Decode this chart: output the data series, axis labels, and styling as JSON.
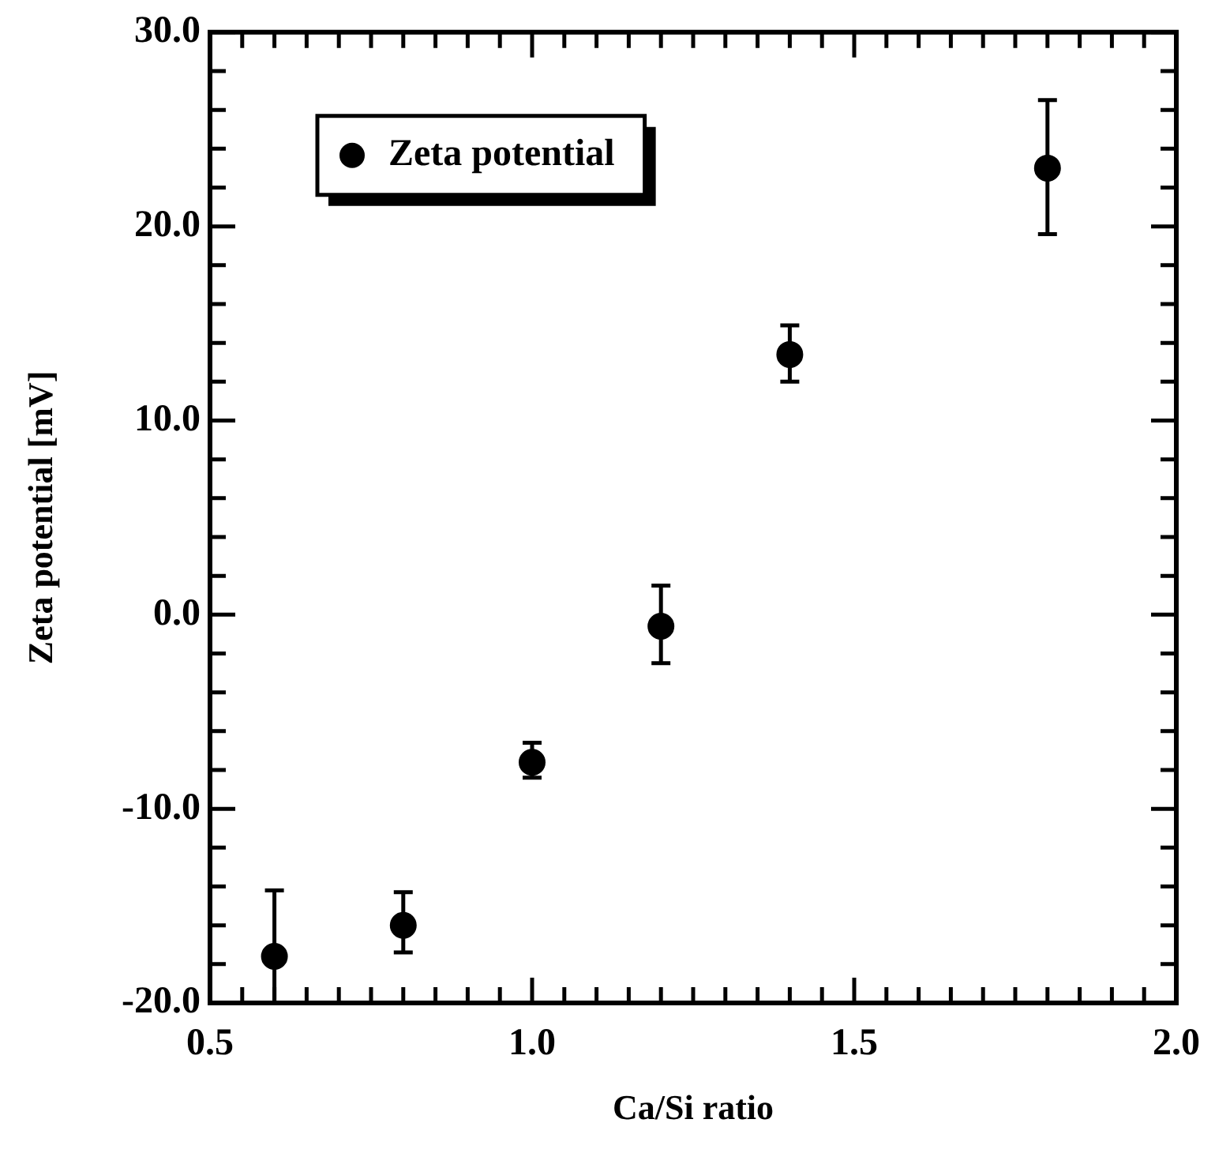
{
  "chart_data": {
    "type": "scatter",
    "xlabel": "Ca/Si ratio",
    "ylabel": "Zeta potential [mV]",
    "series": [
      {
        "name": "Zeta potential",
        "color": "#000000",
        "x": [
          0.6,
          0.8,
          1.0,
          1.2,
          1.4,
          1.8
        ],
        "values": [
          -17.6,
          -16.0,
          -7.6,
          -0.6,
          13.4,
          23.0
        ],
        "errors": [
          [
            -20,
            -14.2
          ],
          [
            -17.4,
            -14.3
          ],
          [
            -8.4,
            -6.6
          ],
          [
            -2.5,
            1.5
          ],
          [
            12.0,
            14.9
          ],
          [
            19.6,
            26.5
          ]
        ]
      }
    ],
    "xlim": [
      0.5,
      2.0
    ],
    "xticks": [
      {
        "value": 0.5,
        "label": "0.5"
      },
      {
        "value": 0.55,
        "label": null
      },
      {
        "value": 0.6,
        "label": null
      },
      {
        "value": 0.65,
        "label": null
      },
      {
        "value": 0.7,
        "label": null
      },
      {
        "value": 0.75,
        "label": null
      },
      {
        "value": 0.8,
        "label": null
      },
      {
        "value": 0.85,
        "label": null
      },
      {
        "value": 0.9,
        "label": null
      },
      {
        "value": 0.95,
        "label": null
      },
      {
        "value": 1.0,
        "label": "1.0"
      },
      {
        "value": 1.05,
        "label": null
      },
      {
        "value": 1.1,
        "label": null
      },
      {
        "value": 1.15,
        "label": null
      },
      {
        "value": 1.2,
        "label": null
      },
      {
        "value": 1.25,
        "label": null
      },
      {
        "value": 1.3,
        "label": null
      },
      {
        "value": 1.35,
        "label": null
      },
      {
        "value": 1.4,
        "label": null
      },
      {
        "value": 1.45,
        "label": null
      },
      {
        "value": 1.5,
        "label": "1.5"
      },
      {
        "value": 1.55,
        "label": null
      },
      {
        "value": 1.6,
        "label": null
      },
      {
        "value": 1.65,
        "label": null
      },
      {
        "value": 1.7,
        "label": null
      },
      {
        "value": 1.75,
        "label": null
      },
      {
        "value": 1.8,
        "label": null
      },
      {
        "value": 1.85,
        "label": null
      },
      {
        "value": 1.9,
        "label": null
      },
      {
        "value": 1.95,
        "label": null
      },
      {
        "value": 2.0,
        "label": "2.0"
      }
    ],
    "ylim": [
      -20,
      30
    ],
    "yticks": [
      {
        "value": -20,
        "label": "-20.0"
      },
      {
        "value": -18,
        "label": null
      },
      {
        "value": -16,
        "label": null
      },
      {
        "value": -14,
        "label": null
      },
      {
        "value": -12,
        "label": null
      },
      {
        "value": -10,
        "label": "-10.0"
      },
      {
        "value": -8,
        "label": null
      },
      {
        "value": -6,
        "label": null
      },
      {
        "value": -4,
        "label": null
      },
      {
        "value": -2,
        "label": null
      },
      {
        "value": 0,
        "label": "0.0"
      },
      {
        "value": 2,
        "label": null
      },
      {
        "value": 4,
        "label": null
      },
      {
        "value": 6,
        "label": null
      },
      {
        "value": 8,
        "label": null
      },
      {
        "value": 10,
        "label": "10.0"
      },
      {
        "value": 12,
        "label": null
      },
      {
        "value": 14,
        "label": null
      },
      {
        "value": 16,
        "label": null
      },
      {
        "value": 18,
        "label": null
      },
      {
        "value": 20,
        "label": "20.0"
      },
      {
        "value": 22,
        "label": null
      },
      {
        "value": 24,
        "label": null
      },
      {
        "value": 26,
        "label": null
      },
      {
        "value": 28,
        "label": null
      },
      {
        "value": 30,
        "label": "30.0"
      }
    ],
    "grid": false,
    "legend": "top left",
    "marker": "circle"
  }
}
